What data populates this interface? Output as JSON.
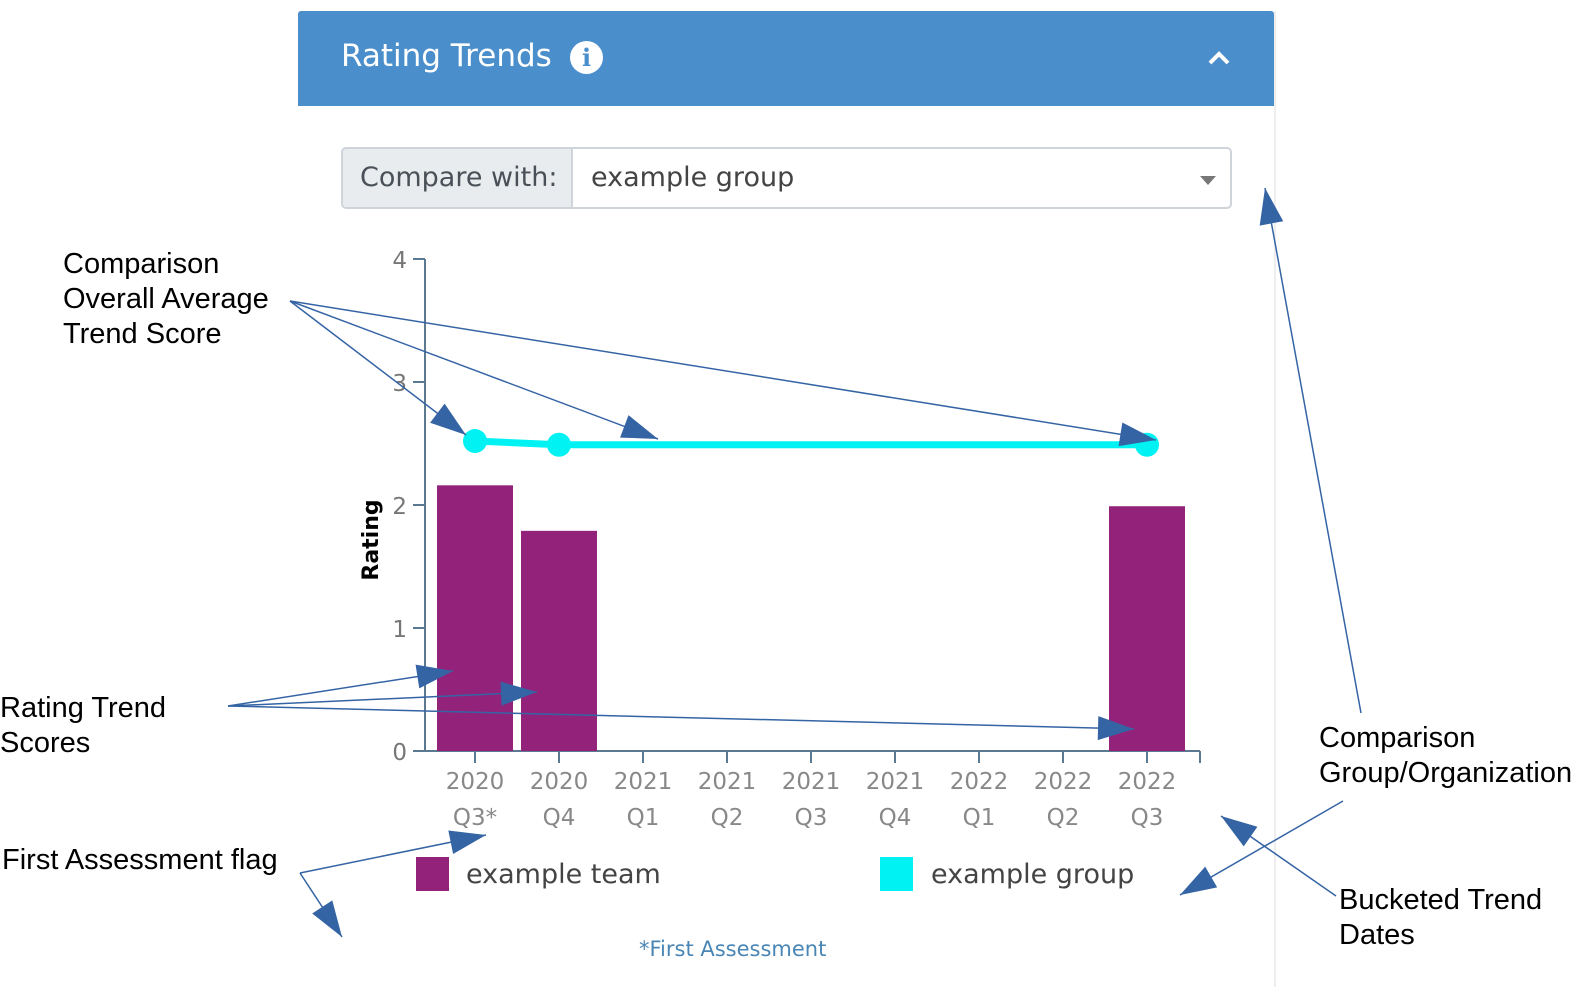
{
  "theme": {
    "header_bg": "#4a8ecb",
    "team_color": "#93237a",
    "group_color": "#00f2f2",
    "axis_color": "#5b7a91",
    "annotation_arrow": "#3564a4",
    "footnote_color": "#4a86b5"
  },
  "panel": {
    "title": "Rating Trends",
    "info_icon": "info-circle-icon",
    "collapse_icon": "chevron-up-icon"
  },
  "compare": {
    "label": "Compare with:",
    "selected": "example group"
  },
  "chart_data": {
    "type": "bar",
    "ylabel": "Rating",
    "ylim": [
      0,
      4
    ],
    "yticks": [
      0,
      1,
      2,
      3,
      4
    ],
    "categories": [
      [
        "2020",
        "Q3*"
      ],
      [
        "2020",
        "Q4"
      ],
      [
        "2021",
        "Q1"
      ],
      [
        "2021",
        "Q2"
      ],
      [
        "2021",
        "Q3"
      ],
      [
        "2021",
        "Q4"
      ],
      [
        "2022",
        "Q1"
      ],
      [
        "2022",
        "Q2"
      ],
      [
        "2022",
        "Q3"
      ]
    ],
    "series": [
      {
        "name": "example team",
        "type": "bar",
        "values": [
          2.16,
          1.79,
          null,
          null,
          null,
          null,
          null,
          null,
          1.99
        ]
      },
      {
        "name": "example group",
        "type": "line",
        "values": [
          2.52,
          2.49,
          null,
          null,
          null,
          null,
          null,
          null,
          2.49
        ]
      }
    ],
    "legend": [
      "example team",
      "example group"
    ]
  },
  "footnote": "*First Assessment",
  "annotations": {
    "comparison_average": [
      "Comparison",
      "Overall Average",
      "Trend Score"
    ],
    "rating_scores": [
      "Rating Trend",
      "Scores"
    ],
    "first_flag": [
      "First Assessment flag"
    ],
    "comparison_group": [
      "Comparison",
      "Group/Organization"
    ],
    "bucketed_dates": [
      "Bucketed Trend",
      "Dates"
    ]
  }
}
